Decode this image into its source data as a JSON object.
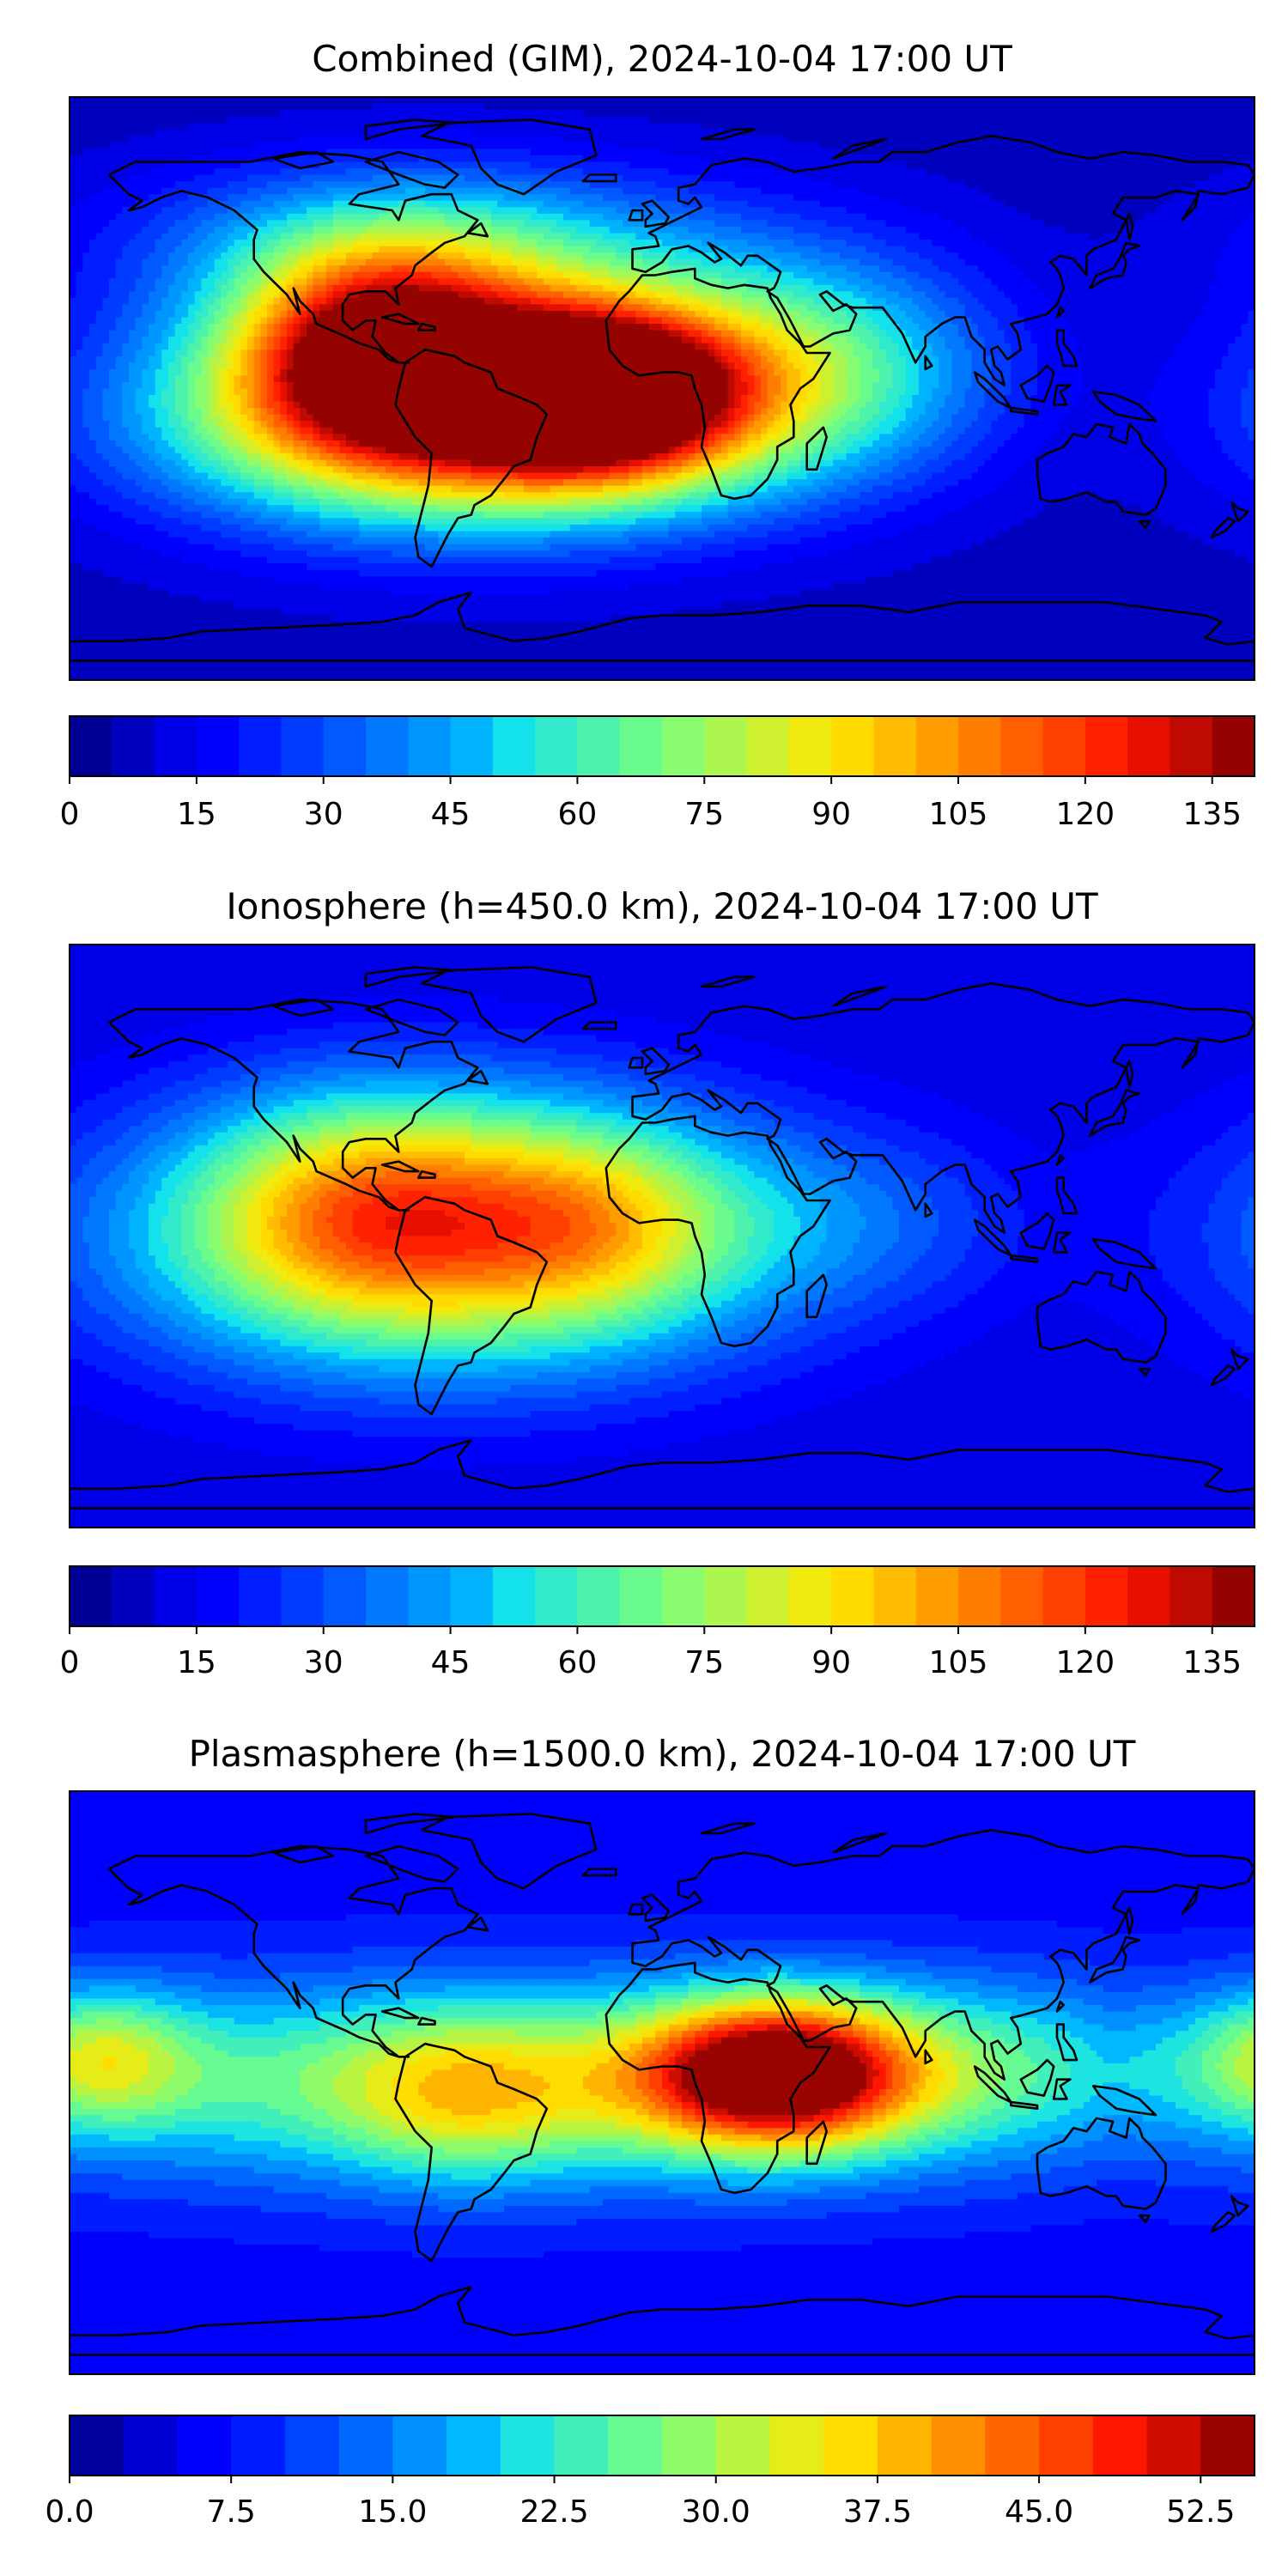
{
  "page": {
    "background": "#ffffff"
  },
  "chart_data": [
    {
      "type": "heatmap",
      "title": "Combined (GIM), 2024-10-04 17:00 UT",
      "subtitle": "",
      "xlabel": "",
      "ylabel": "",
      "grid": false,
      "legend": "none",
      "projection": "plate-carree",
      "x_domain": [
        -180,
        180
      ],
      "y_domain": [
        -90,
        90
      ],
      "colormap": "jet",
      "colorbar": {
        "range": [
          0,
          140
        ],
        "step": 5,
        "tick_values": [
          0,
          15,
          30,
          45,
          60,
          75,
          90,
          105,
          120,
          135
        ],
        "tick_labels": [
          "0",
          "15",
          "30",
          "45",
          "60",
          "75",
          "90",
          "105",
          "120",
          "135"
        ]
      },
      "field": {
        "base": 7,
        "hotspots": [
          {
            "lon": -60,
            "lat": -7,
            "peak": 128,
            "sigma_lon": 62,
            "sigma_lat": 24
          },
          {
            "lon": -18,
            "lat": 0,
            "peak": 96,
            "sigma_lon": 28,
            "sigma_lat": 18
          },
          {
            "lon": -85,
            "lat": 15,
            "peak": 82,
            "sigma_lon": 30,
            "sigma_lat": 20
          },
          {
            "lon": 45,
            "lat": 8,
            "peak": 48,
            "sigma_lon": 40,
            "sigma_lat": 25
          },
          {
            "lon": -70,
            "lat": 45,
            "peak": 45,
            "sigma_lon": 60,
            "sigma_lat": 18
          }
        ]
      }
    },
    {
      "type": "heatmap",
      "title": "Ionosphere  (h=450.0 km), 2024-10-04 17:00 UT",
      "subtitle": "",
      "xlabel": "",
      "ylabel": "",
      "grid": false,
      "legend": "none",
      "projection": "plate-carree",
      "x_domain": [
        -180,
        180
      ],
      "y_domain": [
        -90,
        90
      ],
      "colormap": "jet",
      "colorbar": {
        "range": [
          0,
          140
        ],
        "step": 5,
        "tick_values": [
          0,
          15,
          30,
          45,
          60,
          75,
          90,
          105,
          120,
          135
        ],
        "tick_labels": [
          "0",
          "15",
          "30",
          "45",
          "60",
          "75",
          "90",
          "105",
          "120",
          "135"
        ]
      },
      "field": {
        "base": 10,
        "hotspots": [
          {
            "lon": -65,
            "lat": 0,
            "peak": 80,
            "sigma_lon": 70,
            "sigma_lat": 30
          },
          {
            "lon": -90,
            "lat": 10,
            "peak": 38,
            "sigma_lon": 35,
            "sigma_lat": 25
          },
          {
            "lon": -20,
            "lat": 5,
            "peak": 28,
            "sigma_lon": 28,
            "sigma_lat": 22
          },
          {
            "lon": 60,
            "lat": 5,
            "peak": 14,
            "sigma_lon": 40,
            "sigma_lat": 20
          }
        ]
      }
    },
    {
      "type": "heatmap",
      "title": "Plasmasphere (h=1500.0 km), 2024-10-04 17:00 UT",
      "subtitle": "",
      "xlabel": "",
      "ylabel": "",
      "grid": false,
      "legend": "none",
      "projection": "plate-carree",
      "x_domain": [
        -180,
        180
      ],
      "y_domain": [
        -90,
        90
      ],
      "colormap": "jet",
      "colorbar": {
        "range": [
          0,
          55
        ],
        "step": 2.5,
        "tick_values": [
          0,
          7.5,
          15,
          22.5,
          30,
          37.5,
          45,
          52.5
        ],
        "tick_labels": [
          "0.0",
          "7.5",
          "15.0",
          "22.5",
          "30.0",
          "37.5",
          "45.0",
          "52.5"
        ]
      },
      "field": {
        "base": 6,
        "hotspots": [
          {
            "lon": 35,
            "lat": 3,
            "peak": 42,
            "sigma_lon": 28,
            "sigma_lat": 16
          },
          {
            "lon": -45,
            "lat": 0,
            "peak": 24,
            "sigma_lon": 110,
            "sigma_lat": 22
          },
          {
            "lon": -60,
            "lat": -5,
            "peak": 10,
            "sigma_lon": 25,
            "sigma_lat": 18
          },
          {
            "lon": 105,
            "lat": 5,
            "peak": 10,
            "sigma_lon": 40,
            "sigma_lat": 20
          },
          {
            "lon": -170,
            "lat": 8,
            "peak": 16,
            "sigma_lon": 20,
            "sigma_lat": 15
          }
        ]
      }
    }
  ]
}
